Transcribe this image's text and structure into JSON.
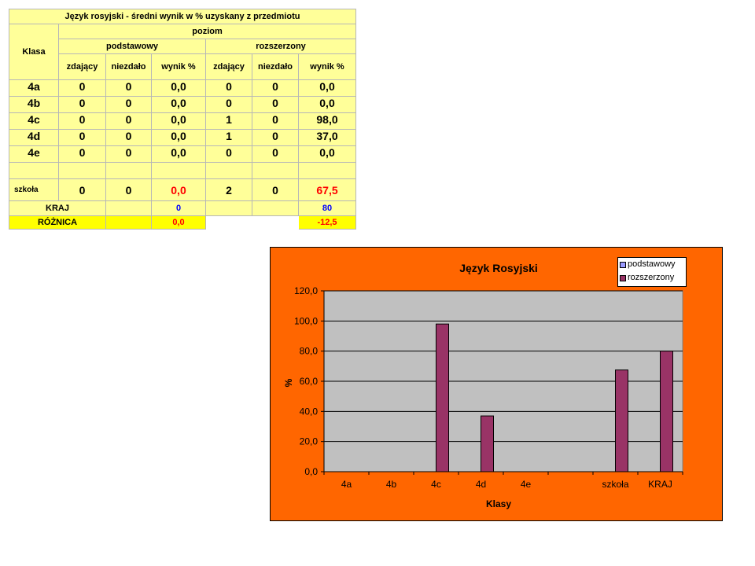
{
  "table": {
    "title": "Język rosyjski  - średni wynik w %  uzyskany  z przedmiotu",
    "klasa": "Klasa",
    "poziom": "poziom",
    "podstawowy": "podstawowy",
    "rozszerzony": "rozszerzony",
    "col_zdajacy": "zdający",
    "col_niezdalo": "niezdało",
    "col_wynik": "wynik %",
    "rows": [
      {
        "klasa": "4a",
        "pz": "0",
        "pn": "0",
        "pw": "0,0",
        "rz": "0",
        "rn": "0",
        "rw": "0,0"
      },
      {
        "klasa": "4b",
        "pz": "0",
        "pn": "0",
        "pw": "0,0",
        "rz": "0",
        "rn": "0",
        "rw": "0,0"
      },
      {
        "klasa": "4c",
        "pz": "0",
        "pn": "0",
        "pw": "0,0",
        "rz": "1",
        "rn": "0",
        "rw": "98,0"
      },
      {
        "klasa": "4d",
        "pz": "0",
        "pn": "0",
        "pw": "0,0",
        "rz": "1",
        "rn": "0",
        "rw": "37,0"
      },
      {
        "klasa": "4e",
        "pz": "0",
        "pn": "0",
        "pw": "0,0",
        "rz": "0",
        "rn": "0",
        "rw": "0,0"
      }
    ],
    "szkola": {
      "label": "szkoła",
      "pz": "0",
      "pn": "0",
      "pw": "0,0",
      "rz": "2",
      "rn": "0",
      "rw": "67,5"
    },
    "kraj": {
      "label": "KRAJ",
      "pw": "0",
      "rw": "80"
    },
    "roznica": {
      "label": "RÓŻNICA",
      "pw": "0,0",
      "rw": "-12,5"
    }
  },
  "chart_data": {
    "type": "bar",
    "title": "Język Rosyjski",
    "xlabel": "Klasy",
    "ylabel": "%",
    "categories": [
      "4a",
      "4b",
      "4c",
      "4d",
      "4e",
      "",
      "szkoła",
      "KRAJ"
    ],
    "series": [
      {
        "name": "podstawowy",
        "values": [
          0,
          0,
          0,
          0,
          0,
          0,
          0,
          0
        ]
      },
      {
        "name": "rozszerzony",
        "values": [
          0,
          0,
          98,
          37,
          0,
          0,
          67.5,
          80
        ]
      }
    ],
    "ylim": [
      0,
      120
    ],
    "yticks": [
      "0,0",
      "20,0",
      "40,0",
      "60,0",
      "80,0",
      "100,0",
      "120,0"
    ],
    "grid": true,
    "legend": "top-right",
    "colors": {
      "background": "#ff6600",
      "plot_area": "#c0c0c0",
      "podstawowy": "#9999ff",
      "rozszerzony": "#993366"
    }
  }
}
